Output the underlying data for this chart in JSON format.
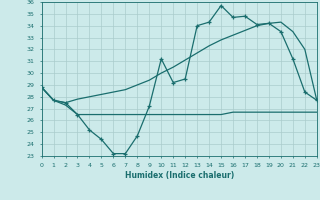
{
  "xlabel": "Humidex (Indice chaleur)",
  "bg_color": "#cceaea",
  "grid_color": "#aacccc",
  "line_color": "#1a6e6e",
  "xlim": [
    0,
    23
  ],
  "ylim": [
    23,
    36
  ],
  "yticks": [
    23,
    24,
    25,
    26,
    27,
    28,
    29,
    30,
    31,
    32,
    33,
    34,
    35,
    36
  ],
  "xticks": [
    0,
    1,
    2,
    3,
    4,
    5,
    6,
    7,
    8,
    9,
    10,
    11,
    12,
    13,
    14,
    15,
    16,
    17,
    18,
    19,
    20,
    21,
    22,
    23
  ],
  "line1_x": [
    0,
    1,
    2,
    3,
    4,
    5,
    6,
    7,
    8,
    9,
    10,
    11,
    12,
    13,
    14,
    15,
    16,
    17,
    18,
    19,
    20,
    21,
    22,
    23
  ],
  "line1_y": [
    28.8,
    27.7,
    27.5,
    26.5,
    25.2,
    24.4,
    23.2,
    23.2,
    24.7,
    27.2,
    31.2,
    29.2,
    29.5,
    34.0,
    34.3,
    35.7,
    34.7,
    34.8,
    34.1,
    34.2,
    33.5,
    31.2,
    28.4,
    27.7
  ],
  "line2_x": [
    0,
    1,
    2,
    3,
    4,
    5,
    6,
    7,
    8,
    9,
    10,
    11,
    12,
    13,
    14,
    15,
    16,
    17,
    18,
    19,
    20,
    21,
    22,
    23
  ],
  "line2_y": [
    28.8,
    27.7,
    27.5,
    27.8,
    28.0,
    28.2,
    28.4,
    28.6,
    29.0,
    29.4,
    30.0,
    30.5,
    31.1,
    31.7,
    32.3,
    32.8,
    33.2,
    33.6,
    34.0,
    34.2,
    34.3,
    33.5,
    32.0,
    27.7
  ],
  "line3_x": [
    0,
    1,
    2,
    3,
    4,
    5,
    6,
    7,
    8,
    9,
    10,
    11,
    12,
    13,
    14,
    15,
    16,
    17,
    18,
    19,
    20,
    21,
    22,
    23
  ],
  "line3_y": [
    28.8,
    27.7,
    27.3,
    26.5,
    26.5,
    26.5,
    26.5,
    26.5,
    26.5,
    26.5,
    26.5,
    26.5,
    26.5,
    26.5,
    26.5,
    26.5,
    26.7,
    26.7,
    26.7,
    26.7,
    26.7,
    26.7,
    26.7,
    26.7
  ]
}
